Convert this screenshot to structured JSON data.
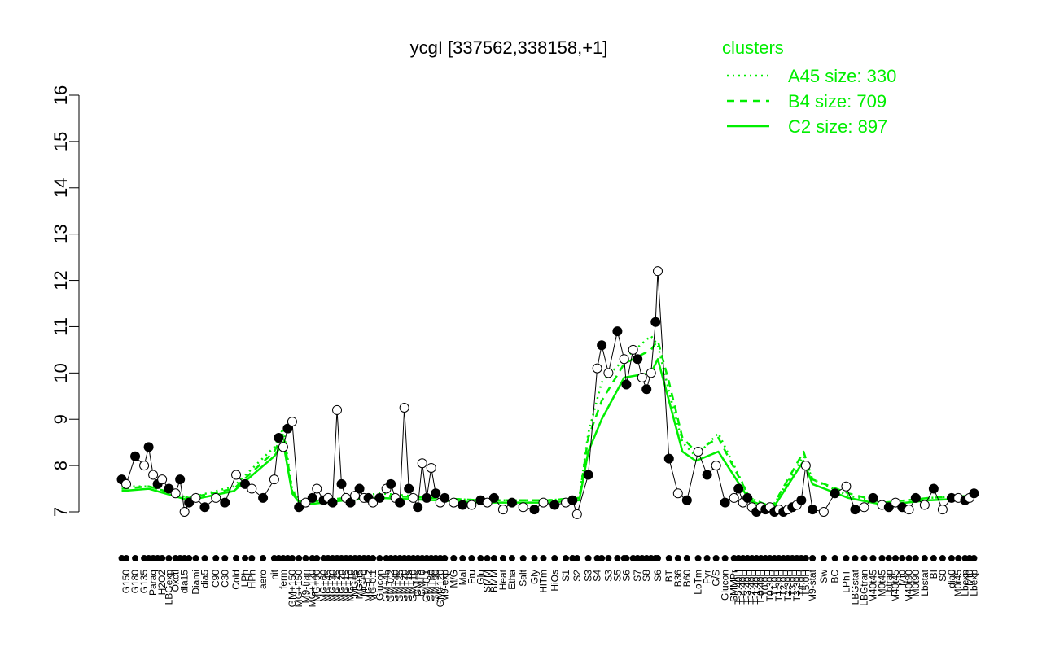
{
  "chart_data": {
    "type": "line",
    "title": "ycgI [337562,338158,+1]",
    "xlabel": "",
    "ylabel": "",
    "ylim": [
      7,
      16
    ],
    "yticks": [
      "7",
      "8",
      "9",
      "10",
      "11",
      "12",
      "13",
      "14",
      "15",
      "16"
    ],
    "grid": false,
    "legend": {
      "title": "clusters",
      "placement": "top-right",
      "entries": [
        {
          "label": "A45 size: 330",
          "style": "dotted"
        },
        {
          "label": "B4 size: 709",
          "style": "dashed"
        },
        {
          "label": "C2 size: 897",
          "style": "solid"
        }
      ]
    },
    "colors": {
      "clusters": "#00ee00",
      "points": "#000000"
    },
    "x_tick_labels": [
      {
        "x": 12,
        "label": "G150"
      },
      {
        "x": 16,
        "label": "G180"
      },
      {
        "x": 20,
        "label": "G135"
      },
      {
        "x": 24,
        "label": "Paraq"
      },
      {
        "x": 28,
        "label": "H2O2"
      },
      {
        "x": 31,
        "label": "LBGexp"
      },
      {
        "x": 34,
        "label": "Oxctl"
      },
      {
        "x": 38,
        "label": "dia15"
      },
      {
        "x": 43,
        "label": "Diami"
      },
      {
        "x": 47,
        "label": "dia5"
      },
      {
        "x": 52,
        "label": "C90"
      },
      {
        "x": 56,
        "label": "C30"
      },
      {
        "x": 61,
        "label": "Cold"
      },
      {
        "x": 65,
        "label": "LPh"
      },
      {
        "x": 68,
        "label": "HPh"
      },
      {
        "x": 73,
        "label": "aero"
      },
      {
        "x": 78,
        "label": "nit"
      },
      {
        "x": 82,
        "label": "ferm"
      },
      {
        "x": 86,
        "label": "GM+150"
      },
      {
        "x": 89,
        "label": "MG+150"
      },
      {
        "x": 92,
        "label": "M9-tran"
      },
      {
        "x": 95,
        "label": "MG+120"
      },
      {
        "x": 97,
        "label": "MG+90"
      },
      {
        "x": 100,
        "label": "MG+60"
      },
      {
        "x": 102,
        "label": "MG+45"
      },
      {
        "x": 104,
        "label": "MG+30"
      },
      {
        "x": 106,
        "label": "MG+25"
      },
      {
        "x": 108,
        "label": "MG+20"
      },
      {
        "x": 110,
        "label": "MG+15"
      },
      {
        "x": 112,
        "label": "MG+10"
      },
      {
        "x": 114,
        "label": "MG+5"
      },
      {
        "x": 116,
        "label": "MG+t5"
      },
      {
        "x": 118,
        "label": "MG+0"
      },
      {
        "x": 120,
        "label": "MG-0.2"
      },
      {
        "x": 122,
        "label": "MG-0.1"
      },
      {
        "x": 125,
        "label": "Glucon"
      },
      {
        "x": 128,
        "label": "GM+45"
      },
      {
        "x": 130,
        "label": "GM-0.2"
      },
      {
        "x": 132,
        "label": "GM+30"
      },
      {
        "x": 134,
        "label": "GM+25"
      },
      {
        "x": 136,
        "label": "GM+20"
      },
      {
        "x": 138,
        "label": "GM+15"
      },
      {
        "x": 140,
        "label": "GM+10"
      },
      {
        "x": 142,
        "label": "GM+5"
      },
      {
        "x": 144,
        "label": "GM+0"
      },
      {
        "x": 146,
        "label": "GM-0.1"
      },
      {
        "x": 148,
        "label": "GM+60"
      },
      {
        "x": 150,
        "label": "GM+90"
      },
      {
        "x": 152,
        "label": "GM+120"
      },
      {
        "x": 154,
        "label": "M9-exp"
      },
      {
        "x": 158,
        "label": "M/G"
      },
      {
        "x": 162,
        "label": "Mal"
      },
      {
        "x": 166,
        "label": "Fru"
      },
      {
        "x": 170,
        "label": "Glu"
      },
      {
        "x": 173,
        "label": "SMM"
      },
      {
        "x": 176,
        "label": "BMM"
      },
      {
        "x": 180,
        "label": "Heat"
      },
      {
        "x": 184,
        "label": "Etha"
      },
      {
        "x": 189,
        "label": "Salt"
      },
      {
        "x": 194,
        "label": "Gly"
      },
      {
        "x": 198,
        "label": "HiTm"
      },
      {
        "x": 203,
        "label": "HiOs"
      },
      {
        "x": 208,
        "label": "S1"
      },
      {
        "x": 213,
        "label": "S2"
      },
      {
        "x": 218,
        "label": "S3"
      },
      {
        "x": 222,
        "label": "S4"
      },
      {
        "x": 227,
        "label": "S3"
      },
      {
        "x": 231,
        "label": "S5"
      },
      {
        "x": 235,
        "label": "S6"
      },
      {
        "x": 240,
        "label": "S7"
      },
      {
        "x": 244,
        "label": "S8"
      },
      {
        "x": 249,
        "label": "S6"
      },
      {
        "x": 254,
        "label": "BT"
      },
      {
        "x": 258,
        "label": "B36"
      },
      {
        "x": 262,
        "label": "B60"
      },
      {
        "x": 267,
        "label": "LoTm"
      },
      {
        "x": 271,
        "label": "Pyr"
      },
      {
        "x": 275,
        "label": "G/S"
      },
      {
        "x": 279,
        "label": "Glucon"
      },
      {
        "x": 283,
        "label": "SMMPr"
      },
      {
        "x": 285,
        "label": "T-5.40H"
      },
      {
        "x": 287,
        "label": "T-4.40H"
      },
      {
        "x": 289,
        "label": "T-3.40H"
      },
      {
        "x": 291,
        "label": "T-2.40H"
      },
      {
        "x": 293,
        "label": "T-1.40H"
      },
      {
        "x": 295,
        "label": "T-0.40H"
      },
      {
        "x": 297,
        "label": "T0.0H"
      },
      {
        "x": 299,
        "label": "T0.30H"
      },
      {
        "x": 301,
        "label": "T1.0H"
      },
      {
        "x": 303,
        "label": "T1.30H"
      },
      {
        "x": 305,
        "label": "T2.0H"
      },
      {
        "x": 307,
        "label": "T2.30H"
      },
      {
        "x": 309,
        "label": "T3.0H"
      },
      {
        "x": 311,
        "label": "T3.30H"
      },
      {
        "x": 313,
        "label": "T4.0H"
      },
      {
        "x": 315,
        "label": "T5.0H"
      },
      {
        "x": 318,
        "label": "M9-stat"
      },
      {
        "x": 323,
        "label": "Sw"
      },
      {
        "x": 328,
        "label": "BC"
      },
      {
        "x": 333,
        "label": "LPhT"
      },
      {
        "x": 337,
        "label": "LBGstat"
      },
      {
        "x": 341,
        "label": "LBGtran"
      },
      {
        "x": 345,
        "label": "M40t45"
      },
      {
        "x": 349,
        "label": "M0t45"
      },
      {
        "x": 352,
        "label": "Lbtran"
      },
      {
        "x": 355,
        "label": "M40t45"
      },
      {
        "x": 358,
        "label": "Mt0"
      },
      {
        "x": 361,
        "label": "M40t90"
      },
      {
        "x": 364,
        "label": "M0t90"
      },
      {
        "x": 368,
        "label": "Lbstat"
      },
      {
        "x": 372,
        "label": "BI"
      },
      {
        "x": 376,
        "label": "S0"
      },
      {
        "x": 380,
        "label": "dia0"
      },
      {
        "x": 383,
        "label": "M0t45"
      },
      {
        "x": 386,
        "label": "Lbexp"
      },
      {
        "x": 388,
        "label": "Mt0"
      },
      {
        "x": 390,
        "label": "Lbexp"
      }
    ],
    "series": [
      {
        "name": "A45 size: 330",
        "style": "dotted",
        "x": [
          10,
          22,
          40,
          60,
          78,
          82,
          86,
          90,
          110,
          125,
          150,
          170,
          200,
          214,
          218,
          224,
          234,
          246,
          249,
          254,
          260,
          266,
          276,
          290,
          300,
          314,
          318,
          334,
          350,
          370,
          390
        ],
        "y": [
          7.55,
          7.55,
          7.3,
          7.55,
          8.4,
          8.8,
          7.5,
          7.2,
          7.3,
          7.4,
          7.3,
          7.25,
          7.25,
          7.3,
          8.7,
          9.8,
          10.3,
          10.8,
          10.6,
          9.6,
          8.5,
          8.2,
          8.7,
          7.3,
          7.1,
          8.2,
          7.7,
          7.35,
          7.2,
          7.3,
          7.35
        ]
      },
      {
        "name": "B4 size: 709",
        "style": "dashed",
        "x": [
          10,
          22,
          40,
          60,
          78,
          82,
          86,
          90,
          110,
          125,
          150,
          170,
          200,
          214,
          218,
          224,
          234,
          246,
          249,
          254,
          260,
          266,
          276,
          290,
          300,
          314,
          318,
          334,
          350,
          370,
          390
        ],
        "y": [
          7.5,
          7.55,
          7.3,
          7.5,
          8.3,
          8.7,
          7.45,
          7.2,
          7.3,
          7.35,
          7.3,
          7.25,
          7.25,
          7.3,
          8.6,
          9.4,
          10.2,
          10.5,
          10.7,
          9.8,
          8.6,
          8.3,
          8.6,
          7.3,
          7.1,
          8.3,
          7.7,
          7.4,
          7.2,
          7.3,
          7.35
        ]
      },
      {
        "name": "C2 size: 897",
        "style": "solid",
        "x": [
          10,
          22,
          40,
          60,
          78,
          82,
          86,
          90,
          110,
          125,
          150,
          170,
          200,
          214,
          218,
          224,
          234,
          246,
          249,
          254,
          260,
          266,
          276,
          290,
          300,
          314,
          318,
          334,
          350,
          370,
          390
        ],
        "y": [
          7.45,
          7.5,
          7.25,
          7.45,
          8.2,
          8.5,
          7.4,
          7.15,
          7.25,
          7.3,
          7.25,
          7.2,
          7.2,
          7.25,
          8.3,
          9.0,
          9.9,
          10.0,
          10.3,
          9.4,
          8.3,
          8.1,
          8.3,
          7.25,
          7.05,
          8.1,
          7.6,
          7.3,
          7.15,
          7.25,
          7.3
        ]
      },
      {
        "name": "",
        "style": "points",
        "x": [
          10,
          12,
          16,
          20,
          22,
          24,
          26,
          28,
          31,
          34,
          36,
          38,
          40,
          43,
          47,
          52,
          56,
          61,
          65,
          68,
          73,
          78,
          80,
          82,
          84,
          86,
          89,
          92,
          95,
          97,
          100,
          102,
          104,
          106,
          108,
          110,
          112,
          114,
          116,
          118,
          120,
          122,
          125,
          128,
          130,
          132,
          134,
          136,
          138,
          140,
          142,
          144,
          146,
          148,
          150,
          152,
          154,
          158,
          162,
          166,
          170,
          173,
          176,
          180,
          184,
          189,
          194,
          198,
          203,
          208,
          211,
          213,
          218,
          222,
          224,
          227,
          231,
          234,
          235,
          238,
          240,
          242,
          244,
          246,
          248,
          249,
          254,
          258,
          262,
          267,
          271,
          275,
          279,
          283,
          285,
          287,
          289,
          291,
          293,
          295,
          297,
          299,
          301,
          303,
          305,
          307,
          309,
          311,
          313,
          315,
          318,
          323,
          328,
          333,
          337,
          341,
          345,
          349,
          352,
          355,
          358,
          361,
          364,
          368,
          372,
          376,
          380,
          383,
          386,
          388,
          390
        ],
        "y": [
          7.7,
          7.6,
          8.2,
          8.0,
          8.4,
          7.8,
          7.6,
          7.7,
          7.5,
          7.4,
          7.7,
          7.0,
          7.2,
          7.3,
          7.1,
          7.3,
          7.2,
          7.8,
          7.6,
          7.5,
          7.3,
          7.7,
          8.6,
          8.4,
          8.8,
          8.95,
          7.1,
          7.2,
          7.3,
          7.5,
          7.25,
          7.3,
          7.2,
          9.2,
          7.6,
          7.3,
          7.2,
          7.35,
          7.5,
          7.3,
          7.3,
          7.2,
          7.3,
          7.5,
          7.6,
          7.3,
          7.2,
          9.25,
          7.5,
          7.3,
          7.1,
          8.05,
          7.3,
          7.95,
          7.4,
          7.2,
          7.3,
          7.2,
          7.15,
          7.15,
          7.25,
          7.2,
          7.3,
          7.05,
          7.2,
          7.1,
          7.05,
          7.2,
          7.15,
          7.2,
          7.25,
          6.95,
          7.8,
          10.1,
          10.6,
          10.0,
          10.9,
          10.3,
          9.75,
          10.5,
          10.3,
          9.9,
          9.65,
          10.0,
          11.1,
          12.2,
          8.15,
          7.4,
          7.25,
          8.3,
          7.8,
          8.0,
          7.2,
          7.3,
          7.5,
          7.2,
          7.3,
          7.1,
          7.0,
          7.1,
          7.05,
          7.1,
          7.0,
          7.05,
          7.0,
          7.05,
          7.1,
          7.15,
          7.25,
          8.0,
          7.05,
          7.0,
          7.4,
          7.55,
          7.05,
          7.1,
          7.3,
          7.15,
          7.1,
          7.2,
          7.1,
          7.05,
          7.3,
          7.15,
          7.5,
          7.05,
          7.3,
          7.3,
          7.25,
          7.3,
          7.4
        ]
      }
    ]
  }
}
